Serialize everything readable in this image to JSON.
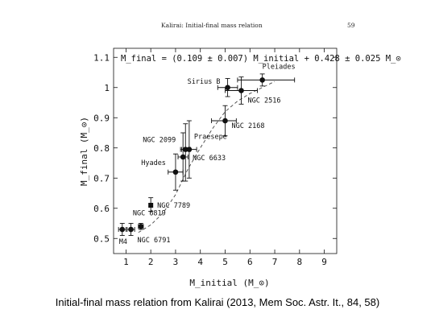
{
  "header": {
    "title": "Kalirai: Initial-final mass relation",
    "page": "59"
  },
  "caption": "Initial-final mass relation from Kalirai (2013, Mem Soc. Astr. It., 84, 58)",
  "chart_data": {
    "type": "scatter",
    "formula": "M_final = (0.109 ± 0.007) M_initial + 0.428 ± 0.025 M_⊙",
    "xlabel": "M_initial (M_⊙)",
    "ylabel": "M_final (M_⊙)",
    "xlim": [
      0.5,
      9.5
    ],
    "ylim": [
      0.45,
      1.13
    ],
    "xticks": [
      1,
      2,
      3,
      4,
      5,
      6,
      7,
      8,
      9
    ],
    "yticks": [
      0.5,
      0.6,
      0.7,
      0.8,
      0.9,
      1.0,
      1.1
    ],
    "xtick_labels": [
      "1",
      "2",
      "3",
      "4",
      "5",
      "6",
      "7",
      "8",
      "9"
    ],
    "ytick_labels": [
      "0.5",
      "0.6",
      "0.7",
      "0.8",
      "0.9",
      "1",
      "1.1"
    ],
    "points": [
      {
        "label": "M4",
        "x": 0.85,
        "y": 0.53,
        "xerr": [
          0.15,
          0.15
        ],
        "yerr": [
          0.02,
          0.02
        ],
        "marker": "circle"
      },
      {
        "label": "",
        "x": 1.2,
        "y": 0.53,
        "xerr": [
          0.15,
          0.15
        ],
        "yerr": [
          0.02,
          0.02
        ],
        "marker": "circle"
      },
      {
        "label": "NGC 6819",
        "x": 1.6,
        "y": 0.54,
        "xerr": [
          0.1,
          0.1
        ],
        "yerr": [
          0.01,
          0.01
        ],
        "marker": "circle"
      },
      {
        "label": "NGC 7789",
        "x": 2.0,
        "y": 0.61,
        "xerr": [
          0,
          0
        ],
        "yerr": [
          0.02,
          0.025
        ],
        "marker": "square"
      },
      {
        "label": "Hyades",
        "x": 3.0,
        "y": 0.72,
        "xerr": [
          0.3,
          0.3
        ],
        "yerr": [
          0.06,
          0.06
        ],
        "marker": "circle"
      },
      {
        "label": "NGC 6633",
        "x": 3.3,
        "y": 0.77,
        "xerr": [
          0.2,
          0.2
        ],
        "yerr": [
          0.08,
          0.08
        ],
        "marker": "circle"
      },
      {
        "label": "NGC 2099",
        "x": 3.4,
        "y": 0.795,
        "xerr": [
          0.2,
          0.2
        ],
        "yerr": [
          0.105,
          0.085
        ],
        "marker": "circle"
      },
      {
        "label": "Praesepe",
        "x": 3.55,
        "y": 0.795,
        "xerr": [
          0.3,
          0.3
        ],
        "yerr": [
          0.095,
          0.095
        ],
        "marker": "circle"
      },
      {
        "label": "NGC 2168",
        "x": 5.0,
        "y": 0.89,
        "xerr": [
          0.55,
          0.45
        ],
        "yerr": [
          0.05,
          0.05
        ],
        "marker": "circle"
      },
      {
        "label": "Sirius B",
        "x": 5.1,
        "y": 1.0,
        "xerr": [
          0.4,
          0.4
        ],
        "yerr": [
          0.03,
          0.03
        ],
        "marker": "circle"
      },
      {
        "label": "NGC 2516",
        "x": 5.65,
        "y": 0.99,
        "xerr": [
          0.65,
          0.65
        ],
        "yerr": [
          0.045,
          0.045
        ],
        "marker": "circle"
      },
      {
        "label": "Pleiades",
        "x": 6.5,
        "y": 1.025,
        "xerr": [
          1.0,
          1.3
        ],
        "yerr": [
          0.02,
          0.02
        ],
        "marker": "circle"
      }
    ],
    "extra_labels": [
      {
        "text": "NGC 6791"
      }
    ],
    "fit_curve": {
      "style": "dashed",
      "x": [
        1.5,
        2.0,
        2.5,
        3.0,
        3.5,
        4.0,
        4.5,
        5.0,
        5.5,
        6.0,
        6.5,
        7.0
      ],
      "y": [
        0.52,
        0.545,
        0.585,
        0.645,
        0.73,
        0.8,
        0.865,
        0.92,
        0.955,
        0.98,
        1.0,
        1.02
      ]
    }
  }
}
